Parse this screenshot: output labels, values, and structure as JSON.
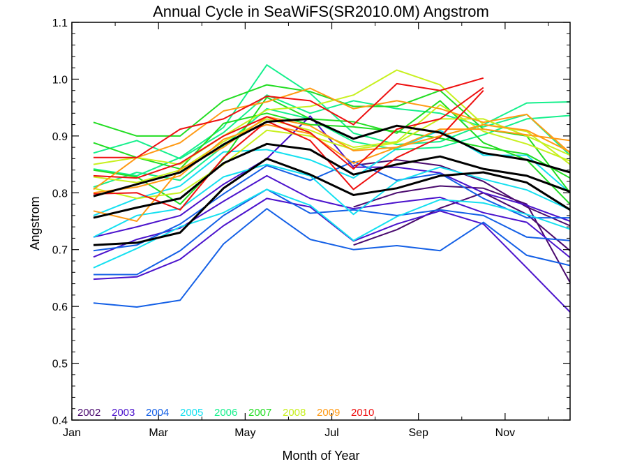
{
  "chart_data": {
    "type": "line",
    "title": "Annual Cycle in SeaWiFS(SR2010.0M) Angstrom",
    "xlabel": "Month of Year",
    "ylabel": "Angstrom",
    "xlim": [
      1,
      12.5
    ],
    "ylim": [
      0.4,
      1.1
    ],
    "xticks": [
      {
        "value": 1,
        "label": "Jan"
      },
      {
        "value": 3,
        "label": "Mar"
      },
      {
        "value": 5,
        "label": "May"
      },
      {
        "value": 7,
        "label": "Jul"
      },
      {
        "value": 9,
        "label": "Sep"
      },
      {
        "value": 11,
        "label": "Nov"
      }
    ],
    "yticks": [
      {
        "value": 0.4,
        "label": "0.4"
      },
      {
        "value": 0.5,
        "label": "0.5"
      },
      {
        "value": 0.6,
        "label": "0.6"
      },
      {
        "value": 0.7,
        "label": "0.7"
      },
      {
        "value": 0.8,
        "label": "0.8"
      },
      {
        "value": 0.9,
        "label": "0.9"
      },
      {
        "value": 1.0,
        "label": "1.0"
      },
      {
        "value": 1.1,
        "label": "1.1"
      }
    ],
    "legend_placement": "bottom-left",
    "legend": [
      {
        "label": "2002",
        "color": "#4a0a6e"
      },
      {
        "label": "2003",
        "color": "#4b12cc"
      },
      {
        "label": "2004",
        "color": "#1460e6"
      },
      {
        "label": "2005",
        "color": "#14e0f0"
      },
      {
        "label": "2006",
        "color": "#14f08c"
      },
      {
        "label": "2007",
        "color": "#22dd22"
      },
      {
        "label": "2008",
        "color": "#c8f01e"
      },
      {
        "label": "2009",
        "color": "#ff9a14"
      },
      {
        "label": "2010",
        "color": "#ee1010"
      }
    ],
    "months": [
      1.5,
      2.5,
      3.5,
      4.5,
      5.5,
      6.5,
      7.5,
      8.5,
      9.5,
      10.5,
      11.5,
      12.5
    ],
    "series": [
      {
        "color": "#4a0a6e",
        "values": [
          null,
          null,
          null,
          null,
          null,
          null,
          0.708,
          0.735,
          0.773,
          0.8,
          0.762,
          0.698
        ]
      },
      {
        "color": "#4a0a6e",
        "values": [
          null,
          null,
          null,
          null,
          null,
          null,
          0.775,
          0.8,
          0.812,
          0.808,
          0.78,
          0.642
        ]
      },
      {
        "color": "#4a0a6e",
        "values": [
          null,
          null,
          null,
          null,
          null,
          null,
          0.848,
          0.858,
          0.848,
          0.82,
          0.775,
          0.742
        ]
      },
      {
        "color": "#4b12cc",
        "values": [
          0.648,
          0.652,
          0.683,
          0.742,
          0.79,
          0.775,
          0.715,
          0.745,
          0.768,
          0.745,
          0.668,
          0.59
        ]
      },
      {
        "color": "#4b12cc",
        "values": [
          0.687,
          0.718,
          0.738,
          0.785,
          0.83,
          0.79,
          0.772,
          0.783,
          0.792,
          0.765,
          0.748,
          0.686
        ]
      },
      {
        "color": "#4b12cc",
        "values": [
          0.722,
          0.74,
          0.76,
          0.815,
          0.86,
          0.935,
          0.845,
          0.845,
          0.835,
          0.8,
          0.778,
          0.75
        ]
      },
      {
        "color": "#1460e6",
        "values": [
          0.606,
          0.599,
          0.611,
          0.71,
          0.772,
          0.718,
          0.7,
          0.707,
          0.698,
          0.748,
          0.69,
          0.672
        ]
      },
      {
        "color": "#1460e6",
        "values": [
          0.656,
          0.656,
          0.698,
          0.76,
          0.806,
          0.764,
          0.77,
          0.76,
          0.77,
          0.76,
          0.722,
          0.716
        ]
      },
      {
        "color": "#1460e6",
        "values": [
          0.698,
          0.708,
          0.745,
          0.798,
          0.848,
          0.822,
          0.855,
          0.822,
          0.834,
          0.79,
          0.756,
          0.756
        ]
      },
      {
        "color": "#14e0f0",
        "values": [
          0.668,
          0.702,
          0.74,
          0.765,
          0.806,
          0.778,
          0.716,
          0.758,
          0.788,
          0.782,
          0.762,
          0.736
        ]
      },
      {
        "color": "#14e0f0",
        "values": [
          0.722,
          0.76,
          0.772,
          0.828,
          0.85,
          0.83,
          0.762,
          0.82,
          0.845,
          0.824,
          0.805,
          0.77
        ]
      },
      {
        "color": "#14e0f0",
        "values": [
          0.76,
          0.79,
          0.812,
          0.872,
          0.876,
          0.858,
          0.826,
          0.878,
          0.91,
          0.866,
          0.866,
          0.8
        ]
      },
      {
        "color": "#14f08c",
        "values": [
          0.842,
          0.83,
          0.862,
          0.915,
          1.025,
          0.975,
          0.905,
          0.885,
          0.89,
          0.92,
          0.958,
          0.96
        ]
      },
      {
        "color": "#14f08c",
        "values": [
          0.81,
          0.836,
          0.822,
          0.882,
          0.948,
          0.93,
          0.89,
          0.876,
          0.88,
          0.902,
          0.93,
          0.936
        ]
      },
      {
        "color": "#14f08c",
        "values": [
          0.87,
          0.892,
          0.86,
          0.906,
          0.972,
          0.94,
          0.962,
          0.948,
          0.94,
          0.916,
          0.938,
          0.866
        ]
      },
      {
        "color": "#22dd22",
        "values": [
          0.924,
          0.9,
          0.9,
          0.962,
          0.99,
          0.978,
          0.952,
          0.952,
          0.98,
          0.912,
          0.9,
          0.8
        ]
      },
      {
        "color": "#22dd22",
        "values": [
          0.888,
          0.862,
          0.842,
          0.922,
          0.94,
          0.92,
          0.916,
          0.908,
          0.896,
          0.88,
          0.868,
          0.826
        ]
      },
      {
        "color": "#22dd22",
        "values": [
          0.84,
          0.828,
          0.78,
          0.86,
          0.968,
          0.93,
          0.925,
          0.905,
          0.962,
          0.888,
          0.858,
          0.78
        ]
      },
      {
        "color": "#c8f01e",
        "values": [
          0.85,
          0.862,
          0.85,
          0.9,
          0.946,
          0.952,
          0.972,
          1.016,
          0.99,
          0.92,
          0.908,
          0.85
        ]
      },
      {
        "color": "#c8f01e",
        "values": [
          0.828,
          0.818,
          0.84,
          0.89,
          0.93,
          0.91,
          0.88,
          0.89,
          0.955,
          0.908,
          0.886,
          0.856
        ]
      },
      {
        "color": "#c8f01e",
        "values": [
          0.808,
          0.79,
          0.8,
          0.85,
          0.91,
          0.9,
          0.876,
          0.888,
          0.93,
          0.93,
          0.9,
          0.866
        ]
      },
      {
        "color": "#ff9a14",
        "values": [
          0.806,
          0.862,
          0.888,
          0.944,
          0.96,
          0.984,
          0.948,
          0.962,
          0.948,
          0.924,
          0.938,
          0.87
        ]
      },
      {
        "color": "#ff9a14",
        "values": [
          0.768,
          0.75,
          0.842,
          0.88,
          0.934,
          0.918,
          0.874,
          0.88,
          0.912,
          0.912,
          0.902,
          0.892
        ]
      },
      {
        "color": "#ff9a14",
        "values": [
          0.8,
          0.81,
          0.83,
          0.894,
          0.92,
          0.904,
          0.852,
          0.88,
          0.9,
          0.92,
          0.91,
          0.872
        ]
      },
      {
        "color": "#ee1010",
        "values": [
          0.862,
          0.862,
          0.912,
          0.93,
          0.97,
          0.962,
          0.92,
          0.992,
          0.98,
          1.002,
          null,
          null
        ]
      },
      {
        "color": "#ee1010",
        "values": [
          0.83,
          0.826,
          0.852,
          0.9,
          0.934,
          0.906,
          0.842,
          0.912,
          0.93,
          0.985,
          null,
          null
        ]
      },
      {
        "color": "#ee1010",
        "values": [
          0.798,
          0.8,
          0.77,
          0.862,
          0.926,
          0.892,
          0.806,
          0.862,
          0.898,
          0.98,
          null,
          null
        ]
      },
      {
        "color": "#000000",
        "width": 3,
        "values": [
          0.794,
          0.815,
          0.836,
          0.885,
          0.925,
          0.93,
          0.895,
          0.918,
          0.906,
          0.87,
          0.858,
          0.836
        ]
      },
      {
        "color": "#000000",
        "width": 3,
        "values": [
          0.756,
          0.774,
          0.79,
          0.852,
          0.886,
          0.876,
          0.832,
          0.85,
          0.864,
          0.842,
          0.83,
          0.802
        ]
      },
      {
        "color": "#000000",
        "width": 3,
        "values": [
          0.708,
          0.712,
          0.73,
          0.808,
          0.86,
          0.832,
          0.796,
          0.808,
          0.83,
          0.836,
          0.818,
          0.77
        ]
      }
    ]
  }
}
